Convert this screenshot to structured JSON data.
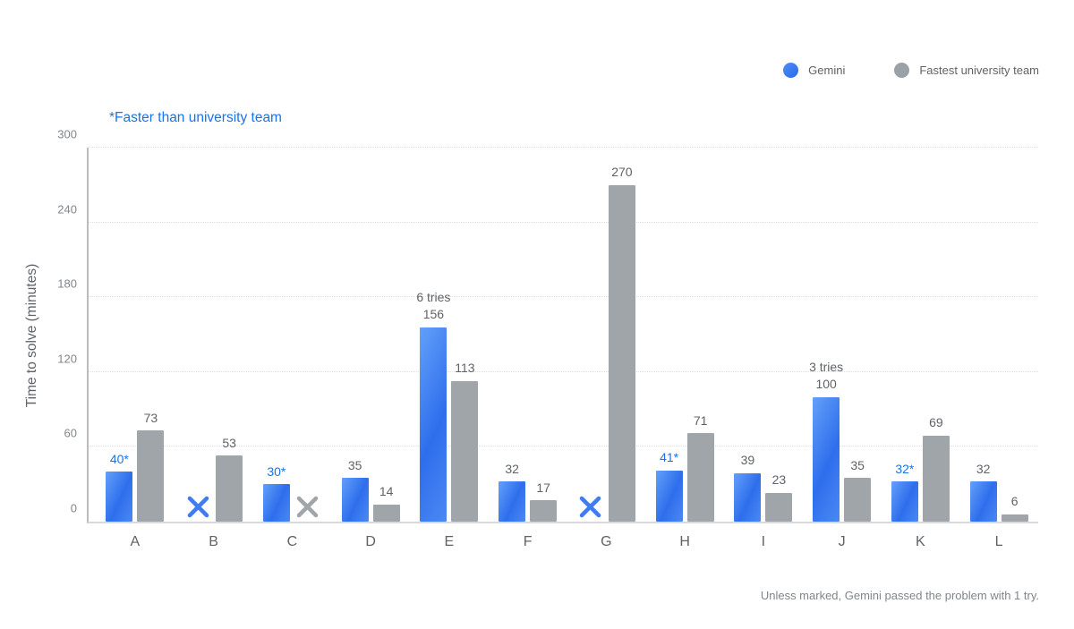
{
  "note": "*Faster than university team",
  "footer": "Unless marked, Gemini passed the problem with 1 try.",
  "colors": {
    "gemini_blue": "#2e6fec",
    "accent_text_blue": "#1a73e8",
    "team_gray": "#a0a5aa",
    "label_gray": "#5f6368",
    "tick_gray": "#80868b"
  },
  "legend": {
    "position": "top-right",
    "items": [
      {
        "label": "Gemini",
        "color": "#2e6fec"
      },
      {
        "label": "Fastest university team",
        "color": "#a0a5aa"
      }
    ]
  },
  "chart_data": {
    "type": "bar",
    "title": "",
    "xlabel": "",
    "ylabel": "Time to solve (minutes)",
    "ylim": [
      0,
      300
    ],
    "yticks": [
      0,
      60,
      120,
      180,
      240,
      300
    ],
    "grid": "horizontal-dotted",
    "legend_position": "top-right",
    "categories": [
      "A",
      "B",
      "C",
      "D",
      "E",
      "F",
      "G",
      "H",
      "I",
      "J",
      "K",
      "L"
    ],
    "series": [
      {
        "name": "Gemini",
        "color": "#2e6fec",
        "points": [
          {
            "value": 40,
            "label": "40*",
            "label_color": "blue"
          },
          {
            "failed": true
          },
          {
            "value": 30,
            "label": "30*",
            "label_color": "blue"
          },
          {
            "value": 35,
            "label": "35"
          },
          {
            "value": 156,
            "label": "156",
            "annotation": "6 tries"
          },
          {
            "value": 32,
            "label": "32"
          },
          {
            "failed": true
          },
          {
            "value": 41,
            "label": "41*",
            "label_color": "blue"
          },
          {
            "value": 39,
            "label": "39"
          },
          {
            "value": 100,
            "label": "100",
            "annotation": "3 tries"
          },
          {
            "value": 32,
            "label": "32*",
            "label_color": "blue"
          },
          {
            "value": 32,
            "label": "32"
          }
        ]
      },
      {
        "name": "Fastest university team",
        "color": "#a0a5aa",
        "points": [
          {
            "value": 73,
            "label": "73"
          },
          {
            "value": 53,
            "label": "53"
          },
          {
            "failed": true
          },
          {
            "value": 14,
            "label": "14"
          },
          {
            "value": 113,
            "label": "113"
          },
          {
            "value": 17,
            "label": "17"
          },
          {
            "value": 270,
            "label": "270"
          },
          {
            "value": 71,
            "label": "71"
          },
          {
            "value": 23,
            "label": "23"
          },
          {
            "value": 35,
            "label": "35"
          },
          {
            "value": 69,
            "label": "69"
          },
          {
            "value": 6,
            "label": "6"
          }
        ]
      }
    ]
  }
}
